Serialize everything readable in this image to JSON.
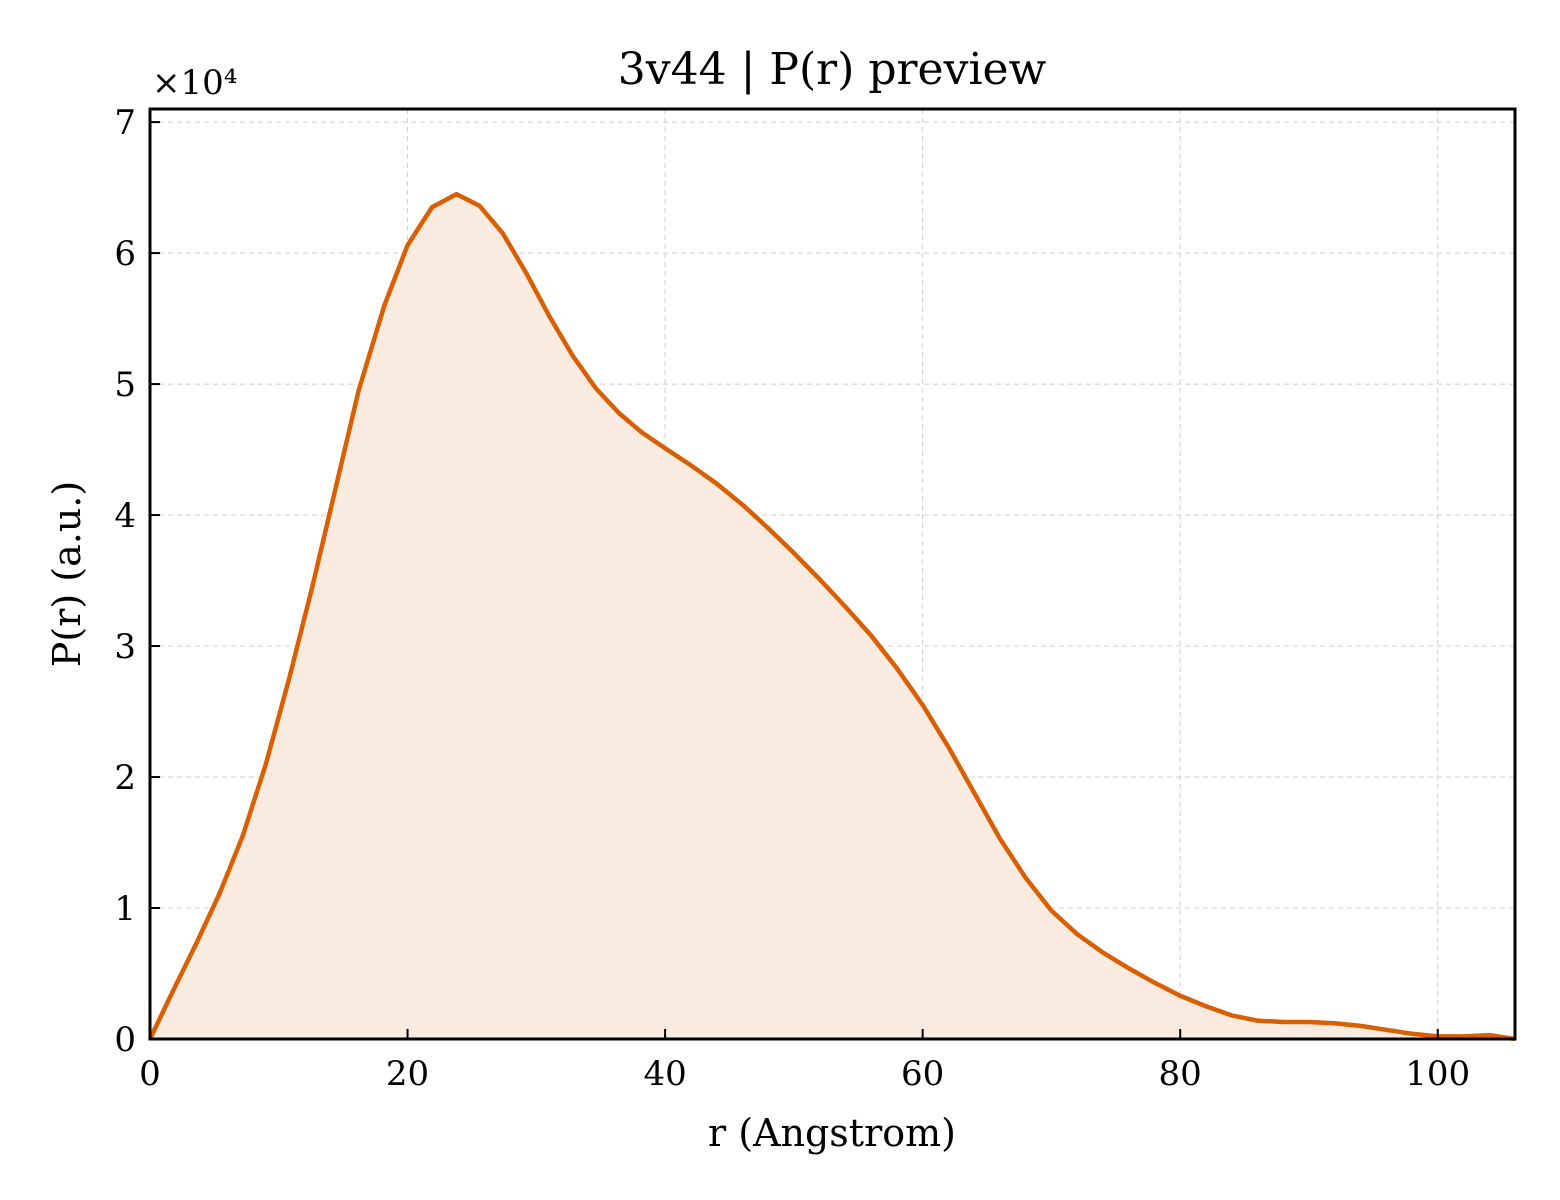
{
  "chart_data": {
    "type": "area",
    "title": "3v44 | P(r) preview",
    "xlabel": "r (Angstrom)",
    "ylabel": "P(r) (a.u.)",
    "y_multiplier_label": "×10⁴",
    "xlim": [
      0,
      106
    ],
    "ylim": [
      0,
      7.1
    ],
    "x_ticks": [
      0,
      20,
      40,
      60,
      80,
      100
    ],
    "y_ticks": [
      0,
      1,
      2,
      3,
      4,
      5,
      6,
      7
    ],
    "grid": true,
    "line_color": "#d95f02",
    "fill_color": "#f9ebe0",
    "series": [
      {
        "x": [
          0,
          1.8,
          3.6,
          5.4,
          7.2,
          9.0,
          10.8,
          12.6,
          14.4,
          16.2,
          18.2,
          20.0,
          21.9,
          23.8,
          25.6,
          27.4,
          29.2,
          31.0,
          32.8,
          34.6,
          36.4,
          38.2,
          40.0,
          42.0,
          44.0,
          46.0,
          48.0,
          50.0,
          52.0,
          54.0,
          56.0,
          58.0,
          60.0,
          62.0,
          64.0,
          66.0,
          68.0,
          70.0,
          72.0,
          74.0,
          76.0,
          78.0,
          80.0,
          82.0,
          84.0,
          86.0,
          88.0,
          90.0,
          92.0,
          94.0,
          96.0,
          98.0,
          100.0,
          102.0,
          104.0,
          106.0
        ],
        "y": [
          0,
          0.37,
          0.73,
          1.11,
          1.55,
          2.1,
          2.75,
          3.45,
          4.2,
          4.95,
          5.6,
          6.06,
          6.35,
          6.45,
          6.36,
          6.15,
          5.85,
          5.52,
          5.22,
          4.97,
          4.78,
          4.63,
          4.51,
          4.38,
          4.24,
          4.08,
          3.9,
          3.71,
          3.51,
          3.3,
          3.08,
          2.83,
          2.55,
          2.23,
          1.88,
          1.53,
          1.23,
          0.98,
          0.8,
          0.66,
          0.54,
          0.43,
          0.33,
          0.25,
          0.18,
          0.14,
          0.13,
          0.13,
          0.12,
          0.1,
          0.07,
          0.04,
          0.02,
          0.02,
          0.03,
          0.0
        ]
      }
    ]
  }
}
